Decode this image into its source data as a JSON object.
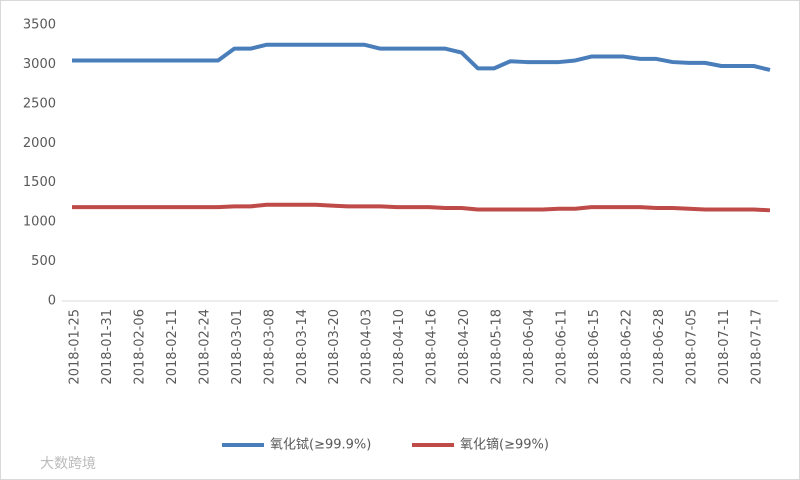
{
  "chart_data": {
    "type": "line",
    "categories": [
      "2018-01-25",
      null,
      "2018-01-31",
      null,
      "2018-02-06",
      null,
      "2018-02-11",
      null,
      "2018-02-24",
      null,
      "2018-03-01",
      null,
      "2018-03-08",
      null,
      "2018-03-14",
      null,
      "2018-03-20",
      null,
      "2018-04-03",
      null,
      "2018-04-10",
      null,
      "2018-04-16",
      null,
      "2018-04-20",
      null,
      "2018-05-18",
      null,
      "2018-06-04",
      null,
      "2018-06-11",
      null,
      "2018-06-15",
      null,
      "2018-06-22",
      null,
      "2018-06-28",
      null,
      "2018-07-05",
      null,
      "2018-07-11",
      null,
      "2018-07-17",
      null
    ],
    "series": [
      {
        "name": "氧化铽(≥99.9%)",
        "color": "#4a7ebb",
        "values": [
          3050,
          3050,
          3050,
          3050,
          3050,
          3050,
          3050,
          3050,
          3050,
          3050,
          3200,
          3200,
          3250,
          3250,
          3250,
          3250,
          3250,
          3250,
          3250,
          3200,
          3200,
          3200,
          3200,
          3200,
          3150,
          2950,
          2950,
          3040,
          3030,
          3030,
          3030,
          3050,
          3100,
          3100,
          3100,
          3070,
          3070,
          3030,
          3020,
          3020,
          2980,
          2980,
          2980,
          2930
        ]
      },
      {
        "name": "氧化镝(≥99%)",
        "color": "#be4b48",
        "values": [
          1190,
          1190,
          1190,
          1190,
          1190,
          1190,
          1190,
          1190,
          1190,
          1190,
          1200,
          1200,
          1220,
          1220,
          1220,
          1220,
          1210,
          1200,
          1200,
          1200,
          1190,
          1190,
          1190,
          1180,
          1180,
          1160,
          1160,
          1160,
          1160,
          1160,
          1170,
          1170,
          1190,
          1190,
          1190,
          1190,
          1180,
          1180,
          1170,
          1160,
          1160,
          1160,
          1160,
          1150
        ]
      }
    ],
    "ylim": [
      0,
      3500
    ],
    "yticks": [
      0,
      500,
      1000,
      1500,
      2000,
      2500,
      3000,
      3500
    ],
    "grid": false,
    "legend": "bottom",
    "watermark": "大数跨境"
  }
}
